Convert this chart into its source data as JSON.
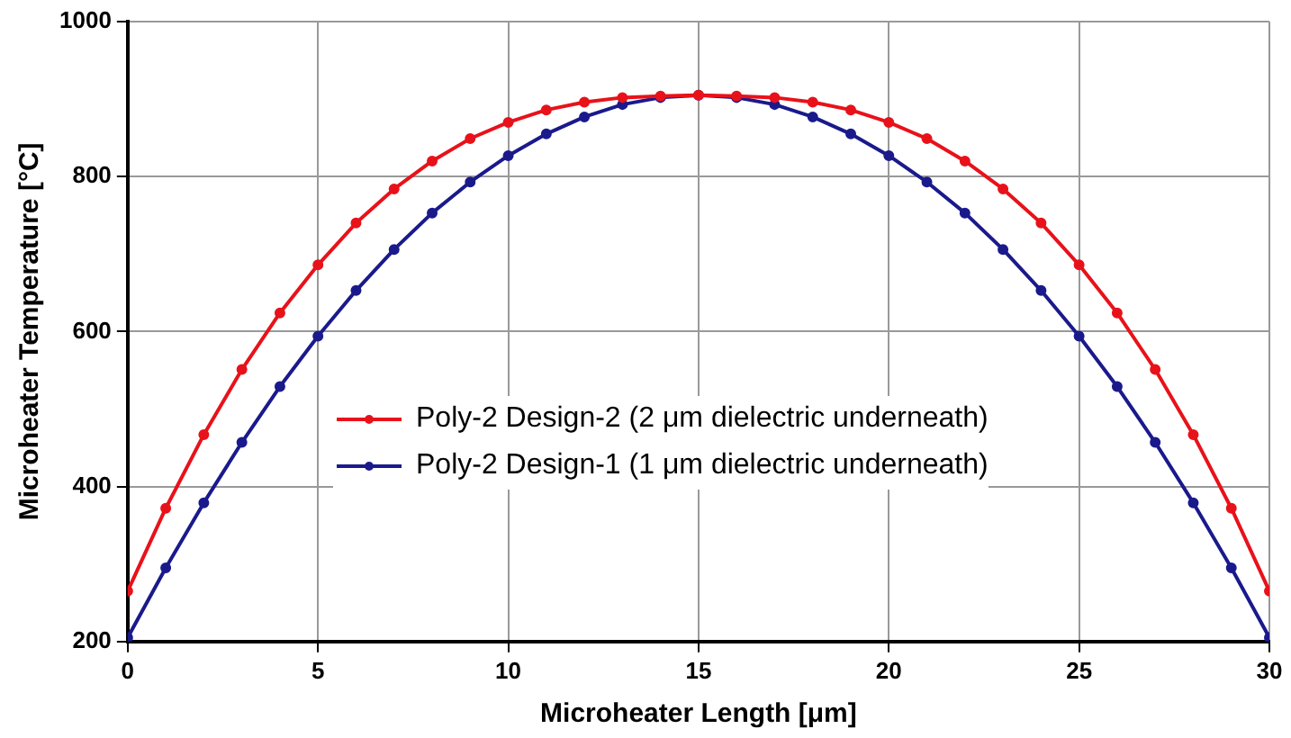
{
  "chart_data": {
    "type": "line",
    "xlabel": "Microheater Length [μm]",
    "ylabel": "Microheater Temperature [°C]",
    "xlim": [
      0,
      30
    ],
    "xticks": [
      0,
      5,
      10,
      15,
      20,
      25,
      30
    ],
    "ylim": [
      200,
      1000
    ],
    "yticks": [
      200,
      400,
      600,
      800,
      1000
    ],
    "grid": true,
    "legend": "center",
    "marker": "circle",
    "line_style": "solid",
    "x": [
      0,
      1,
      2,
      3,
      4,
      5,
      6,
      7,
      8,
      9,
      10,
      11,
      12,
      13,
      14,
      15,
      16,
      17,
      18,
      19,
      20,
      21,
      22,
      23,
      24,
      25,
      26,
      27,
      28,
      29,
      30
    ],
    "series": [
      {
        "name": "Poly-2 Design-2 (2 μm dielectric underneath)",
        "color": "#e8121a",
        "values": [
          265,
          372,
          467,
          551,
          624,
          686,
          740,
          784,
          820,
          849,
          870,
          886,
          896,
          902,
          904,
          905,
          904,
          902,
          896,
          886,
          870,
          849,
          820,
          784,
          740,
          686,
          624,
          551,
          467,
          372,
          265
        ]
      },
      {
        "name": "Poly-2 Design-1 (1 μm dielectric underneath)",
        "color": "#1a1a8c",
        "values": [
          205,
          295,
          379,
          457,
          529,
          594,
          653,
          706,
          753,
          793,
          827,
          855,
          877,
          893,
          902,
          905,
          902,
          893,
          877,
          855,
          827,
          793,
          753,
          706,
          653,
          594,
          529,
          457,
          379,
          295,
          205
        ]
      }
    ]
  }
}
